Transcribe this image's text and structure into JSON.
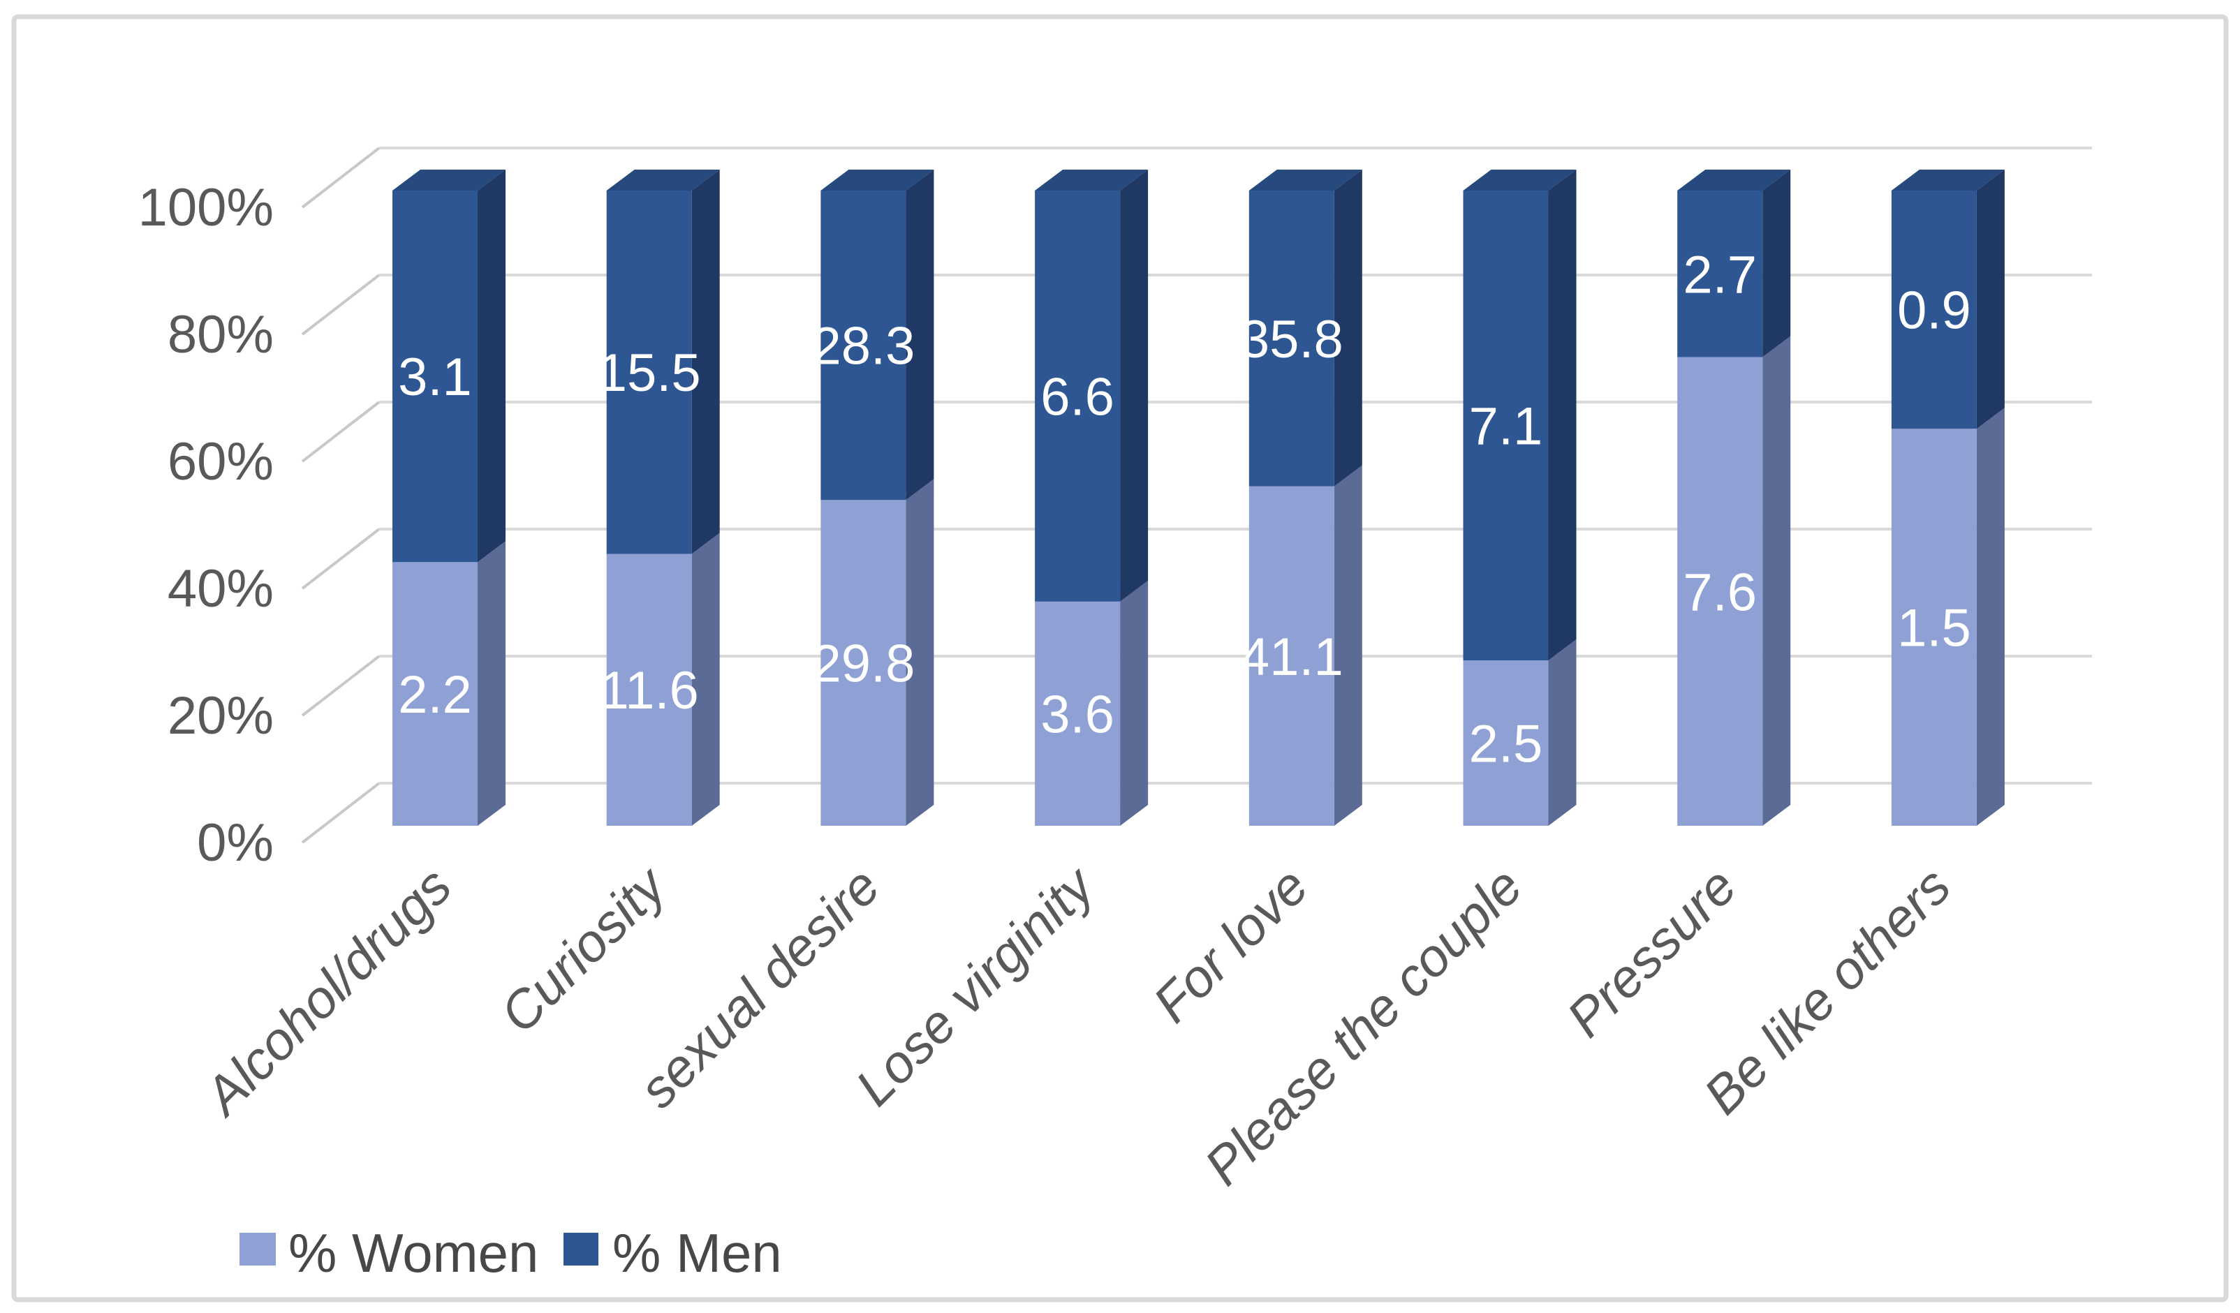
{
  "chart_data": {
    "type": "bar",
    "subtype": "100-percent-stacked-column-3d",
    "title": "",
    "xlabel": "",
    "ylabel": "",
    "categories": [
      "Alcohol/drugs",
      "Curiosity",
      "sexual desire",
      "Lose virginity",
      "For love",
      "Please the couple",
      "Pressure",
      "Be like others"
    ],
    "series": [
      {
        "name": "% Women",
        "color": "#8EA0D4",
        "values": [
          2.2,
          11.6,
          29.8,
          3.6,
          41.1,
          2.5,
          7.6,
          1.5
        ]
      },
      {
        "name": "% Men",
        "color": "#2E5693",
        "values": [
          3.1,
          15.5,
          28.3,
          6.6,
          35.8,
          7.1,
          2.7,
          0.9
        ]
      }
    ],
    "y_axis": {
      "min": 0,
      "max": 100,
      "unit": "%",
      "ticks": [
        "0%",
        "20%",
        "40%",
        "60%",
        "80%",
        "100%"
      ],
      "tick_values": [
        0,
        20,
        40,
        60,
        80,
        100
      ]
    },
    "gridlines": true,
    "legend_position": "bottom",
    "value_labels": "inside-center",
    "colors": {
      "women_front": "#8EA0D4",
      "women_side": "#5C6B96",
      "men_front": "#2E5693",
      "men_side": "#1F3864",
      "men_top": "#26497E",
      "gridline": "#D9D9D9",
      "tick_line": "#C8C8C8",
      "axis_text": "#595959",
      "data_label_text": "#FFFFFF",
      "legend_text": "#474747",
      "frame_border": "#D9D9D9",
      "background": "#FFFFFF"
    }
  },
  "legend": {
    "items": [
      {
        "label": "% Women",
        "color": "#8EA0D4"
      },
      {
        "label": "% Men",
        "color": "#2E5693"
      }
    ]
  }
}
